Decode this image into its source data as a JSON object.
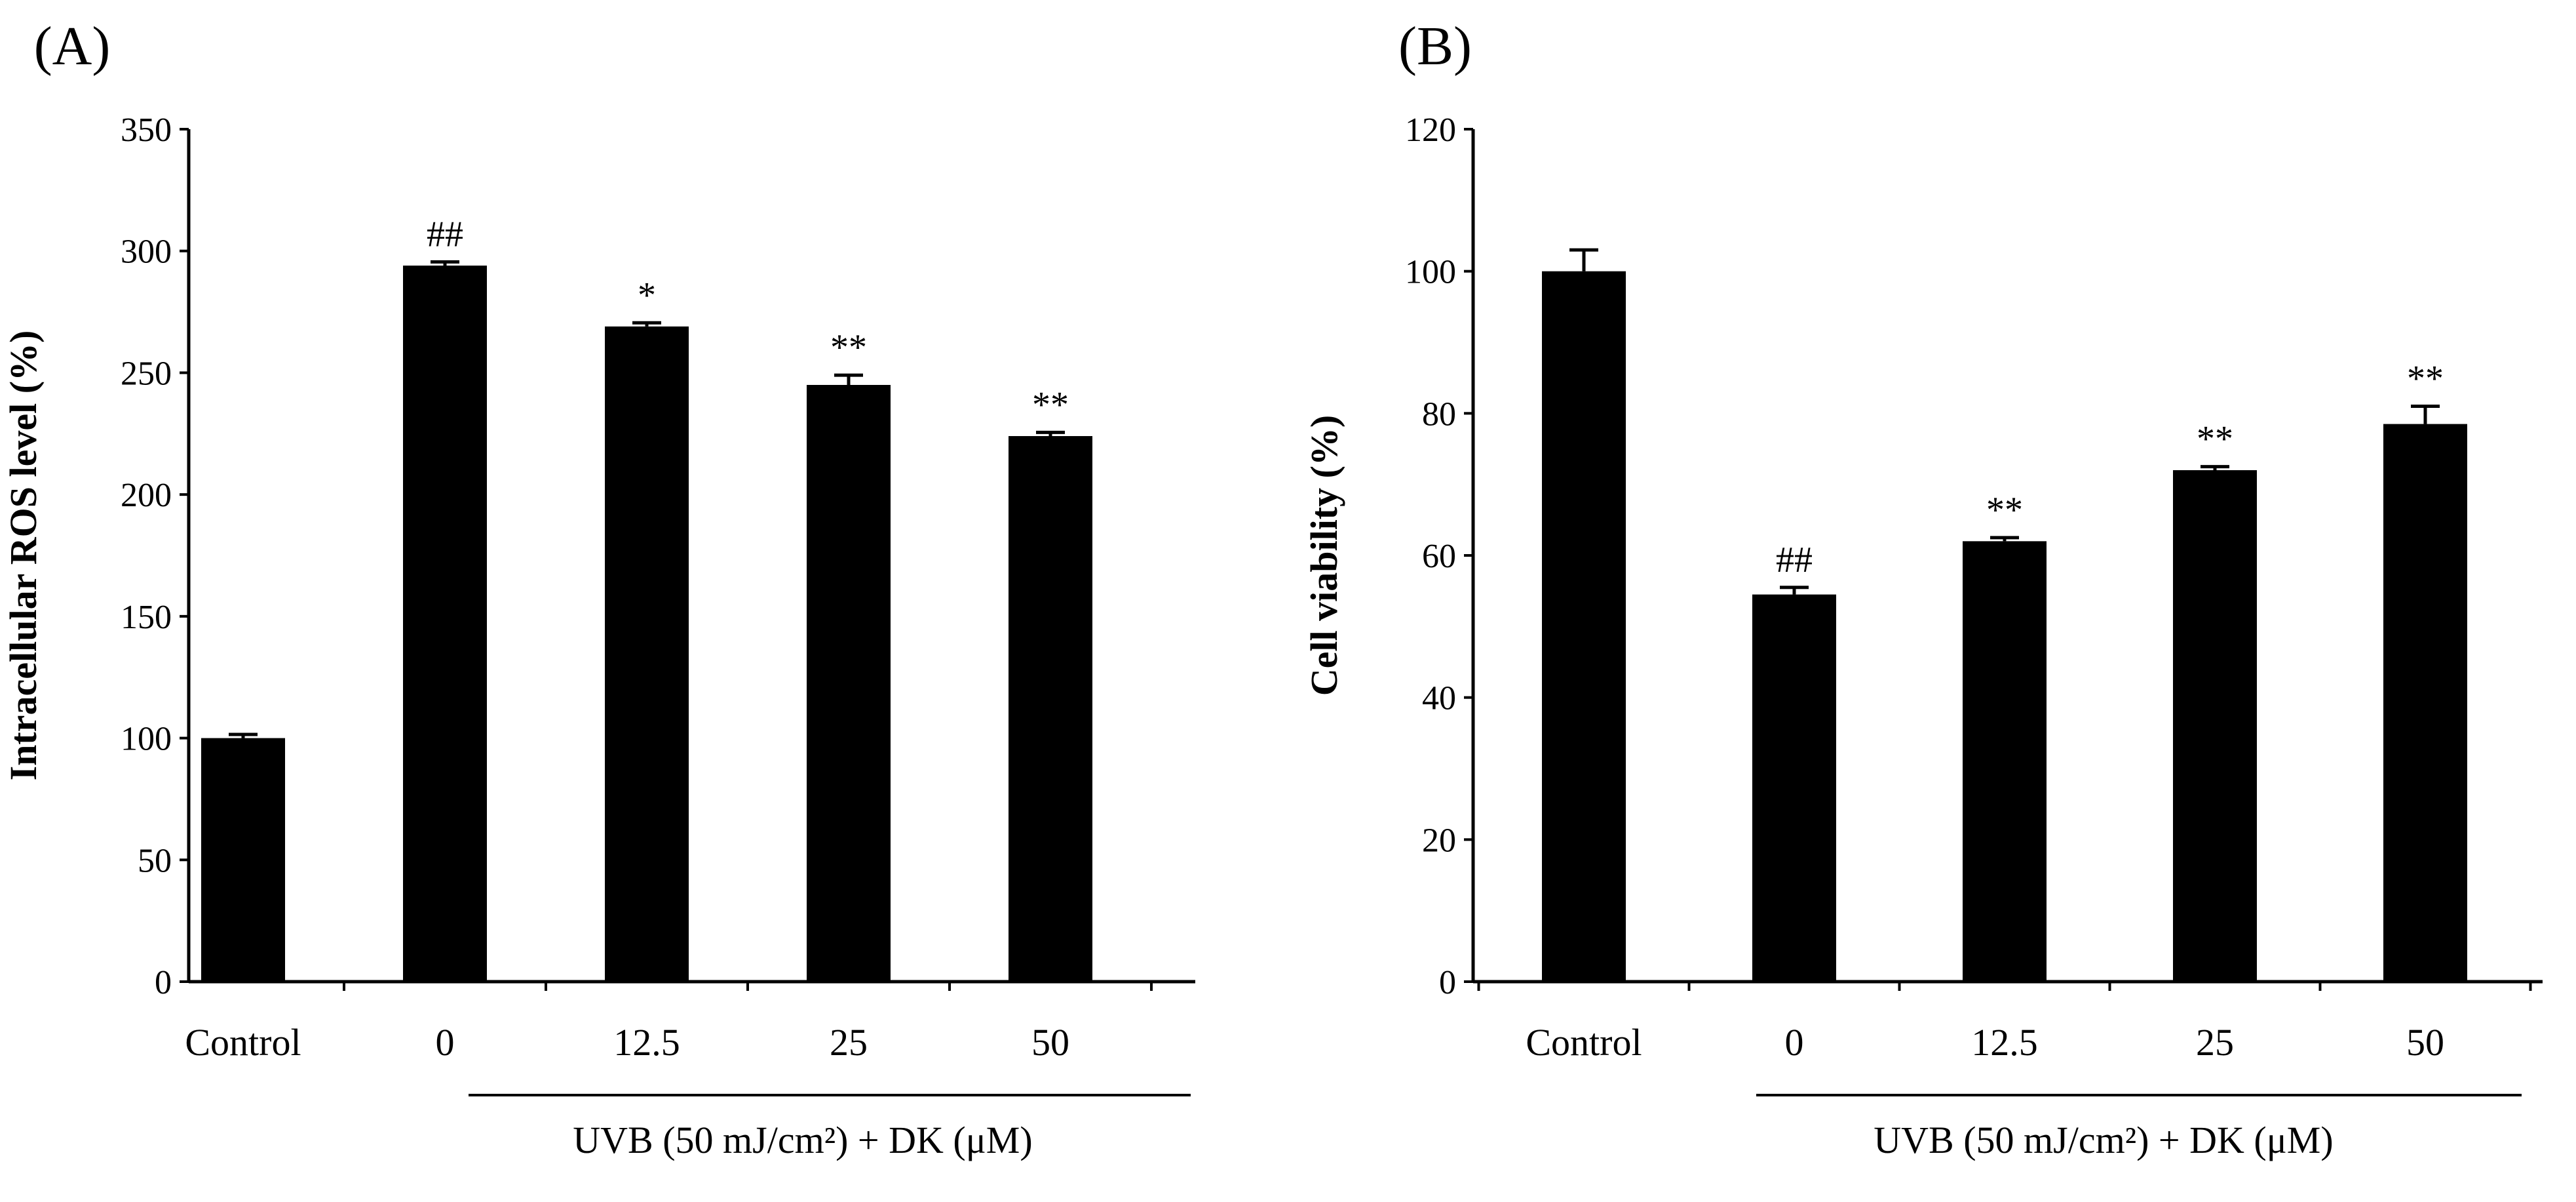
{
  "chart_data": [
    {
      "type": "bar",
      "panel_label": "(A)",
      "title": "",
      "xlabel": "",
      "ylabel": "Intracellular ROS level (%)",
      "ylim": [
        0,
        350
      ],
      "yticks": [
        "0",
        "50",
        "100",
        "150",
        "200",
        "250",
        "300",
        "350"
      ],
      "categories": [
        "Control",
        "0",
        "12.5",
        "25",
        "50"
      ],
      "values": [
        100,
        294,
        269,
        245,
        224
      ],
      "errors": [
        1.5,
        1.5,
        1.5,
        4,
        1.5
      ],
      "significance": [
        "",
        "##",
        "*",
        "**",
        "**"
      ],
      "group_label": "UVB (50 mJ/cm²)  + DK (μM)",
      "bar_color": "#000000"
    },
    {
      "type": "bar",
      "panel_label": "(B)",
      "title": "",
      "xlabel": "",
      "ylabel": "Cell viability (%)",
      "ylim": [
        0,
        120
      ],
      "yticks": [
        "0",
        "20",
        "40",
        "60",
        "80",
        "100",
        "120"
      ],
      "categories": [
        "Control",
        "0",
        "12.5",
        "25",
        "50"
      ],
      "values": [
        100,
        54.5,
        62,
        72,
        78.5
      ],
      "errors": [
        3,
        1,
        0.5,
        0.5,
        2.5
      ],
      "significance": [
        "",
        "##",
        "**",
        "**",
        "**"
      ],
      "group_label": "UVB (50 mJ/cm²)  + DK (μM)",
      "bar_color": "#000000"
    }
  ]
}
